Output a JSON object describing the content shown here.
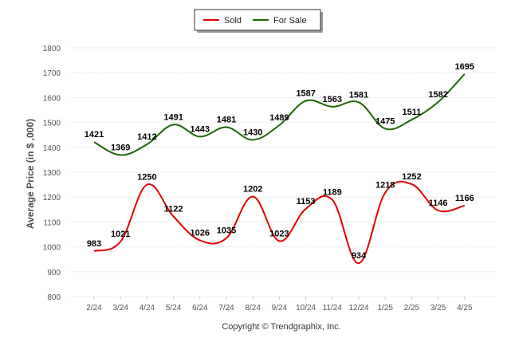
{
  "chart_data": {
    "type": "line",
    "title": "",
    "xlabel": "",
    "ylabel": "Average Price (in $ ,000)",
    "categories": [
      "2/24",
      "3/24",
      "4/24",
      "5/24",
      "6/24",
      "7/24",
      "8/24",
      "9/24",
      "10/24",
      "11/24",
      "12/24",
      "1/25",
      "2/25",
      "3/25",
      "4/25"
    ],
    "series": [
      {
        "name": "Sold",
        "color": "#e00000",
        "values": [
          983,
          1021,
          1250,
          1122,
          1026,
          1035,
          1202,
          1023,
          1153,
          1189,
          934,
          1218,
          1252,
          1146,
          1166
        ]
      },
      {
        "name": "For Sale",
        "color": "#1a6600",
        "values": [
          1421,
          1369,
          1412,
          1491,
          1443,
          1481,
          1430,
          1489,
          1587,
          1563,
          1581,
          1475,
          1511,
          1582,
          1695
        ]
      }
    ],
    "ylim": [
      800,
      1800
    ],
    "yticks": [
      800,
      900,
      1000,
      1100,
      1200,
      1300,
      1400,
      1500,
      1600,
      1700,
      1800
    ],
    "grid": true,
    "legend_position": "top-center",
    "data_labels": true
  },
  "footer": {
    "copyright": "Copyright © Trendgraphix, Inc."
  }
}
